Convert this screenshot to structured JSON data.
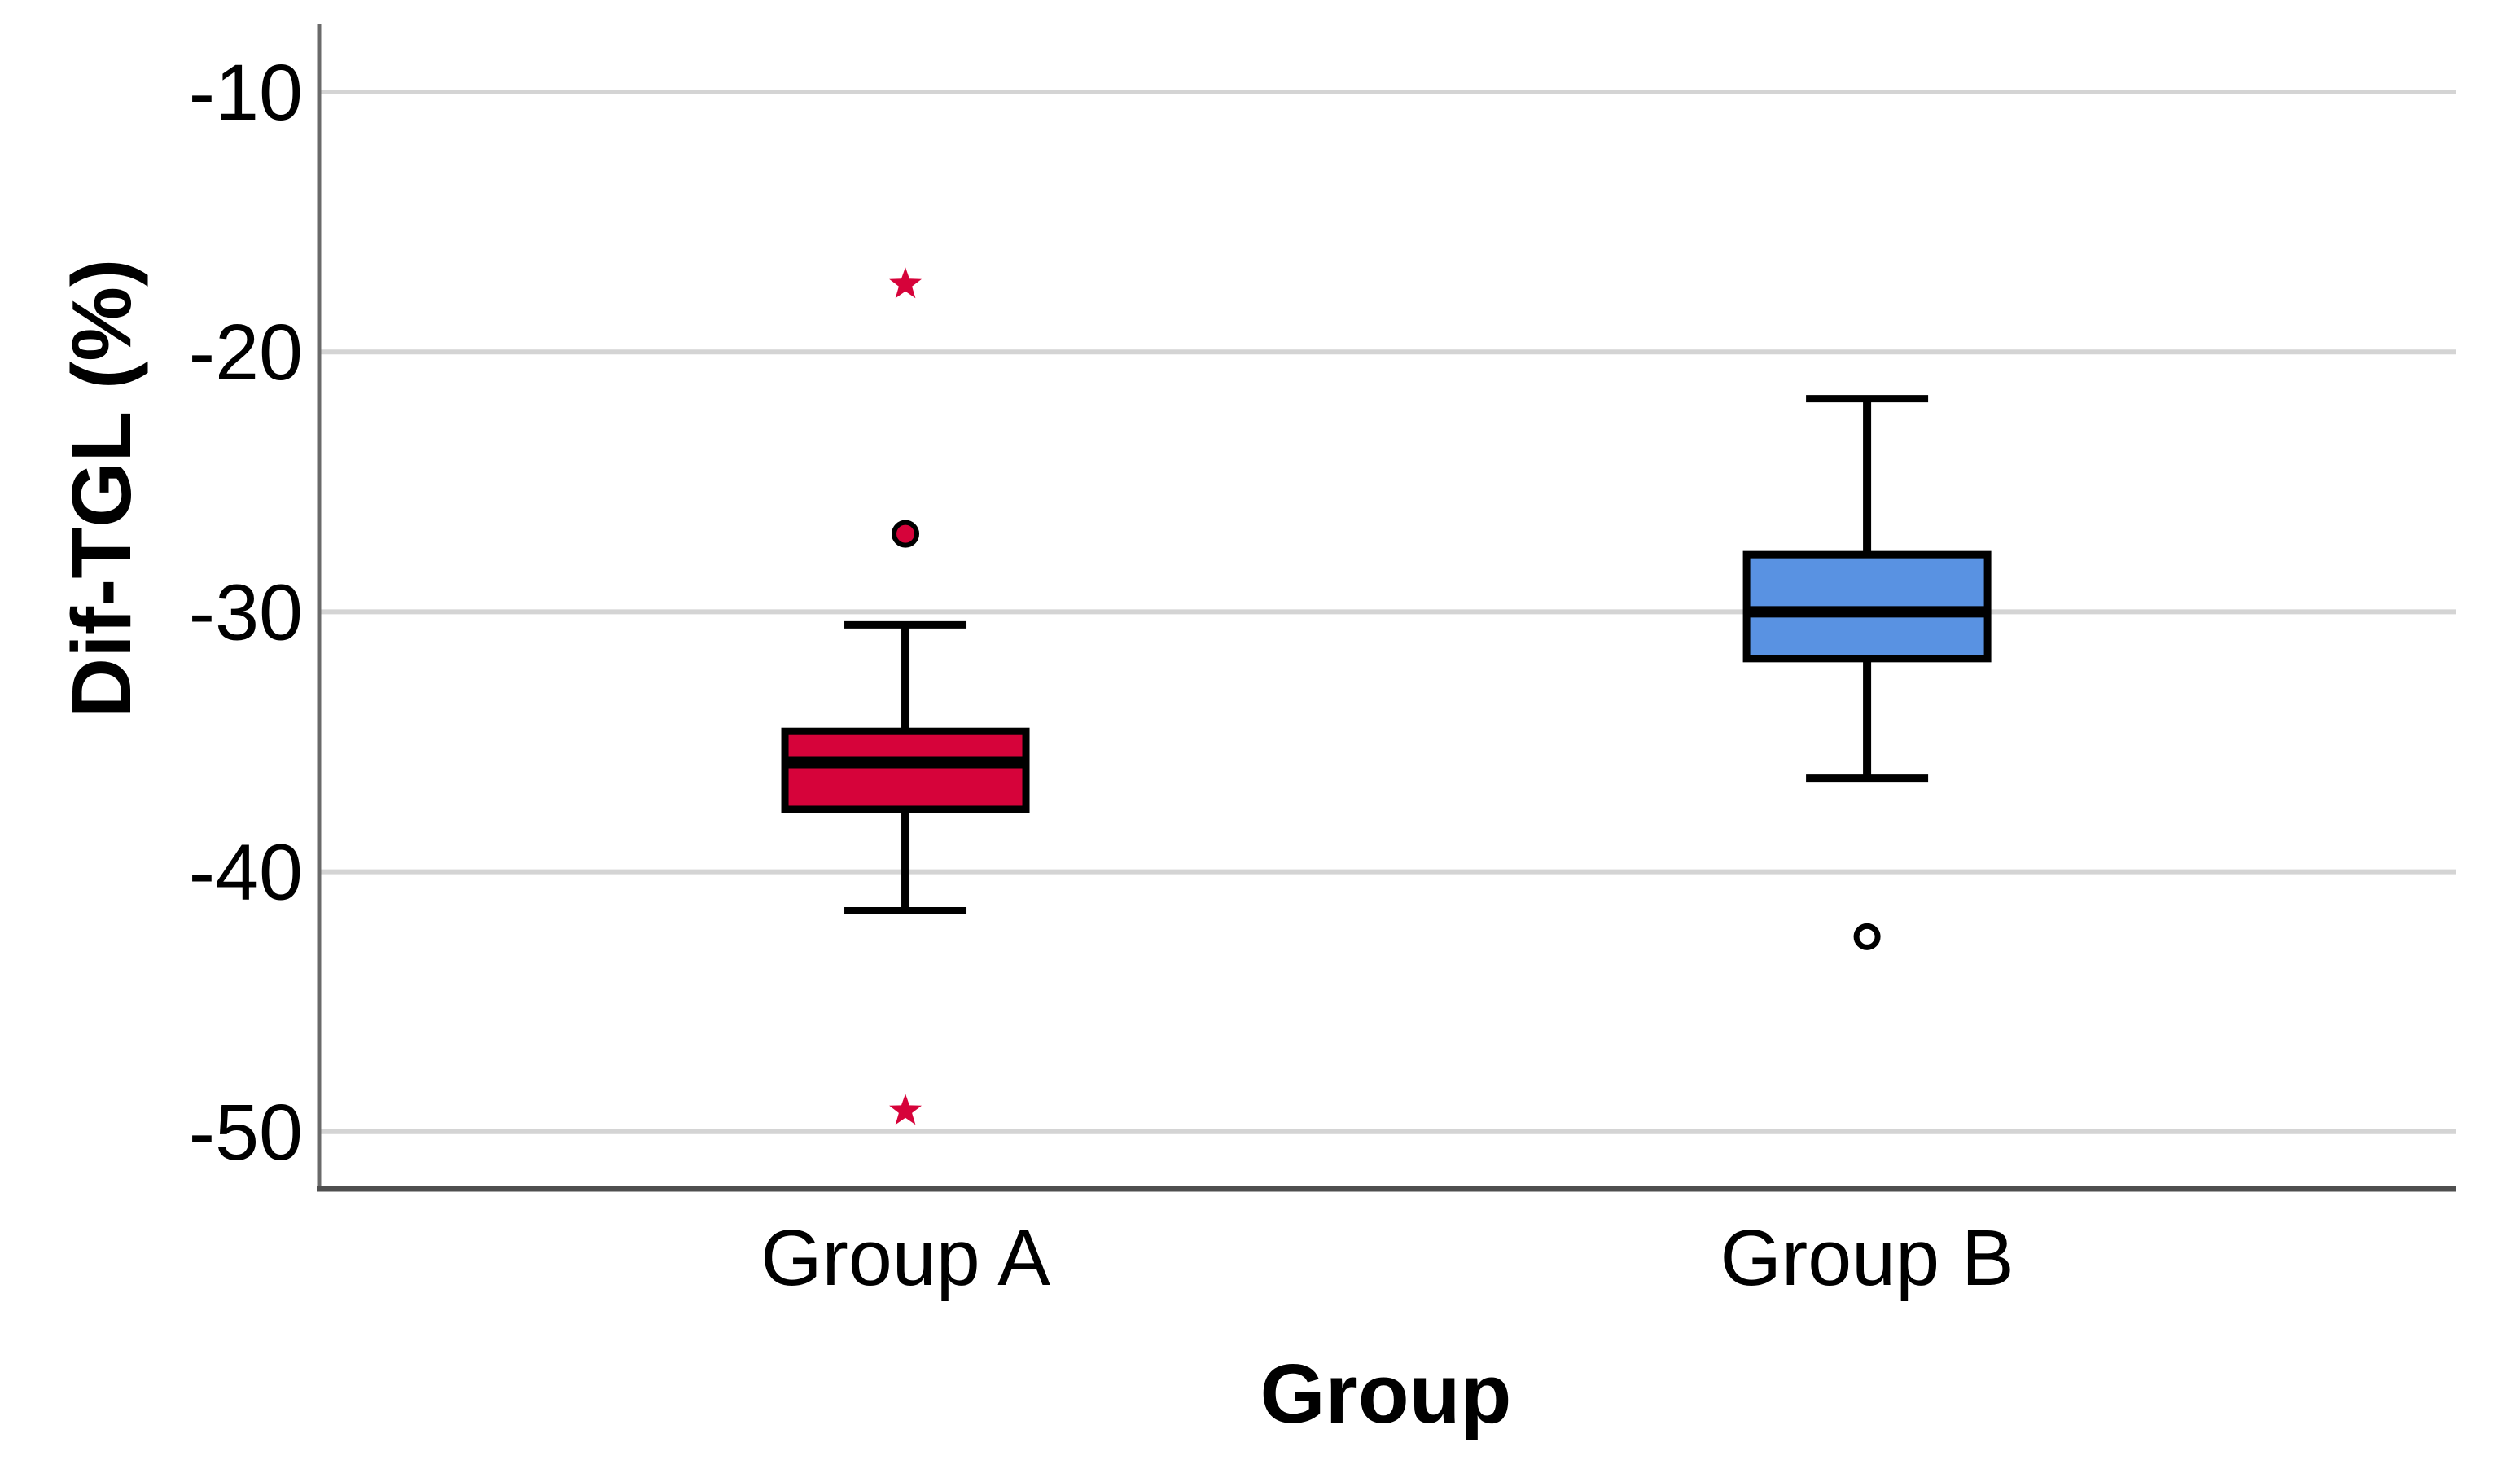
{
  "chart_data": {
    "type": "boxplot",
    "title": "",
    "xlabel": "Group",
    "ylabel": "Dif-TGL (%)",
    "categories": [
      "Group A",
      "Group B"
    ],
    "yticks": [
      -10,
      -20,
      -30,
      -40,
      -50
    ],
    "ylim_top": -7.4,
    "ylim_bottom": -52.2,
    "grid": "horizontal-gridlines",
    "legend": "none",
    "series": [
      {
        "name": "Group A",
        "box_color": "#D6033A",
        "whisker_low": -41.5,
        "q1": -37.6,
        "median": -35.8,
        "q3": -34.6,
        "whisker_high": -30.5,
        "outliers": [
          {
            "value": -17.4,
            "marker": "star"
          },
          {
            "value": -27.0,
            "marker": "filled-circle"
          },
          {
            "value": -49.2,
            "marker": "star"
          }
        ]
      },
      {
        "name": "Group B",
        "box_color": "#5992E2",
        "whisker_low": -36.4,
        "q1": -31.8,
        "median": -30.0,
        "q3": -27.8,
        "whisker_high": -21.8,
        "outliers": [
          {
            "value": -42.5,
            "marker": "open-circle"
          }
        ]
      }
    ],
    "colors": {
      "gridline": "#D4D4D4",
      "y_axis_line": "#6A6A6A",
      "x_axis_line": "#4F4F4F",
      "box_border": "#000000",
      "median_line": "#000000",
      "whisker": "#000000",
      "tick_text": "#000000",
      "open_circle_fill": "#FFFFFF"
    }
  }
}
